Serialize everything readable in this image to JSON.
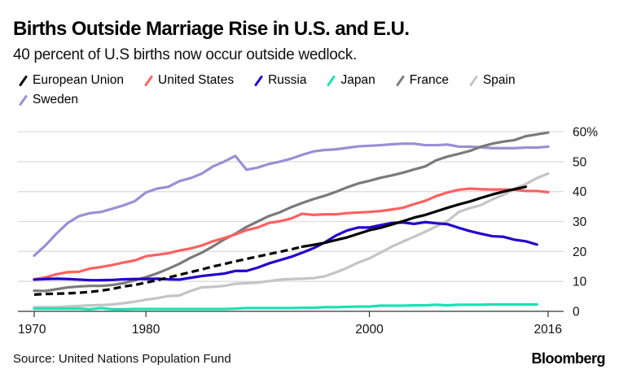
{
  "header": {
    "title": "Births Outside Marriage Rise in U.S. and E.U.",
    "subtitle": "40 percent of U.S births now occur outside wedlock."
  },
  "footer": {
    "source": "Source: United Nations Population Fund",
    "brand": "Bloomberg"
  },
  "chart_data": {
    "type": "line",
    "title": "Births Outside Marriage Rise in U.S. and E.U.",
    "subtitle": "40 percent of U.S births now occur outside wedlock.",
    "xlabel": "",
    "ylabel": "",
    "xlim": [
      1970,
      2016
    ],
    "ylim": [
      0,
      60
    ],
    "x_ticks": [
      1970,
      1980,
      2000,
      2016
    ],
    "x_tick_labels": [
      "1970",
      "1980",
      "2000",
      "2016"
    ],
    "y_ticks": [
      0,
      10,
      20,
      30,
      40,
      50,
      60
    ],
    "y_tick_labels": [
      "0",
      "10",
      "20",
      "30",
      "40",
      "50",
      "60%"
    ],
    "y_axis_side": "right",
    "grid": true,
    "legend_position": "top-left",
    "series": [
      {
        "name": "European Union",
        "color": "#000000",
        "dashed_until": 1994,
        "start_year": 1970,
        "values": [
          5.6,
          5.8,
          5.9,
          6.0,
          6.2,
          6.5,
          6.9,
          7.5,
          8.3,
          8.8,
          9.6,
          10.4,
          11.3,
          12.2,
          13.1,
          14.0,
          15.0,
          15.8,
          16.7,
          17.5,
          18.3,
          19.1,
          19.9,
          20.7,
          21.6,
          22.2,
          22.9,
          23.8,
          24.7,
          25.9,
          27.1,
          27.9,
          29.0,
          30.1,
          31.3,
          32.2,
          33.4,
          34.6,
          35.7,
          36.7,
          37.9,
          39.0,
          40.0,
          40.8,
          41.6
        ]
      },
      {
        "name": "United States",
        "color": "#ff6060",
        "start_year": 1970,
        "values": [
          10.7,
          11.3,
          12.4,
          13.1,
          13.2,
          14.3,
          14.8,
          15.5,
          16.3,
          17.0,
          18.4,
          18.9,
          19.4,
          20.3,
          21.0,
          22.0,
          23.4,
          24.5,
          25.7,
          27.1,
          28.0,
          29.5,
          30.1,
          31.0,
          32.6,
          32.2,
          32.4,
          32.4,
          32.8,
          33.0,
          33.2,
          33.5,
          34.0,
          34.6,
          35.8,
          36.9,
          38.5,
          39.7,
          40.6,
          41.0,
          40.8,
          40.7,
          40.7,
          40.6,
          40.2,
          40.2,
          39.8
        ]
      },
      {
        "name": "Russia",
        "color": "#2200cc",
        "start_year": 1970,
        "values": [
          10.6,
          10.8,
          10.9,
          10.8,
          10.6,
          10.4,
          10.4,
          10.5,
          10.7,
          10.8,
          10.8,
          10.9,
          10.7,
          10.6,
          11.2,
          11.8,
          12.2,
          12.6,
          13.5,
          13.5,
          14.6,
          16.0,
          17.1,
          18.2,
          19.6,
          21.1,
          23.0,
          25.3,
          27.0,
          28.0,
          28.0,
          28.8,
          29.5,
          29.7,
          29.2,
          29.8,
          29.4,
          29.1,
          27.9,
          26.8,
          25.9,
          25.1,
          24.9,
          23.9,
          23.4,
          22.3
        ]
      },
      {
        "name": "Japan",
        "color": "#1de0b4",
        "start_year": 1970,
        "values": [
          0.9,
          0.9,
          0.9,
          0.9,
          0.9,
          0.7,
          1.1,
          0.7,
          0.7,
          0.8,
          0.8,
          0.8,
          0.8,
          0.8,
          0.8,
          0.8,
          0.8,
          0.8,
          0.9,
          1.1,
          1.1,
          1.1,
          1.1,
          1.1,
          1.2,
          1.2,
          1.4,
          1.4,
          1.5,
          1.6,
          1.6,
          1.9,
          1.9,
          1.9,
          2.0,
          2.0,
          2.2,
          2.0,
          2.2,
          2.2,
          2.2,
          2.3,
          2.3,
          2.3,
          2.3,
          2.3
        ]
      },
      {
        "name": "France",
        "color": "#7a7a7a",
        "start_year": 1970,
        "values": [
          6.9,
          6.8,
          7.4,
          8.0,
          8.3,
          8.5,
          8.5,
          8.8,
          9.4,
          10.4,
          11.4,
          12.7,
          14.2,
          15.9,
          17.9,
          19.6,
          21.7,
          24.0,
          25.9,
          28.2,
          30.0,
          31.8,
          33.1,
          34.8,
          36.2,
          37.5,
          38.6,
          39.9,
          41.4,
          42.7,
          43.6,
          44.6,
          45.4,
          46.3,
          47.4,
          48.4,
          50.5,
          51.7,
          52.6,
          53.6,
          55.0,
          56.0,
          56.7,
          57.2,
          58.5,
          59.1,
          59.7
        ]
      },
      {
        "name": "Spain",
        "color": "#c4c4c4",
        "start_year": 1970,
        "values": [
          1.4,
          1.4,
          1.4,
          1.6,
          1.8,
          2.0,
          2.1,
          2.3,
          2.7,
          3.2,
          3.9,
          4.4,
          5.1,
          5.3,
          6.8,
          8.0,
          8.2,
          8.5,
          9.2,
          9.4,
          9.6,
          10.1,
          10.6,
          10.8,
          10.9,
          11.1,
          11.7,
          13.0,
          14.5,
          16.3,
          17.7,
          19.6,
          21.6,
          23.3,
          24.9,
          26.6,
          28.4,
          30.2,
          33.2,
          34.5,
          35.5,
          37.4,
          38.9,
          40.9,
          42.5,
          44.5,
          46.0
        ]
      },
      {
        "name": "Sweden",
        "color": "#9a8fd4",
        "start_year": 1970,
        "values": [
          18.6,
          22.0,
          26.0,
          29.5,
          31.8,
          32.8,
          33.2,
          34.3,
          35.4,
          36.8,
          39.7,
          41.0,
          41.6,
          43.5,
          44.5,
          46.0,
          48.4,
          50.0,
          51.9,
          47.3,
          48.0,
          49.2,
          50.0,
          51.0,
          52.3,
          53.4,
          53.9,
          54.1,
          54.6,
          55.1,
          55.3,
          55.5,
          55.8,
          56.0,
          56.0,
          55.5,
          55.5,
          55.7,
          55.0,
          55.0,
          54.8,
          54.5,
          54.5,
          54.5,
          54.7,
          54.7,
          55.0
        ]
      }
    ]
  }
}
